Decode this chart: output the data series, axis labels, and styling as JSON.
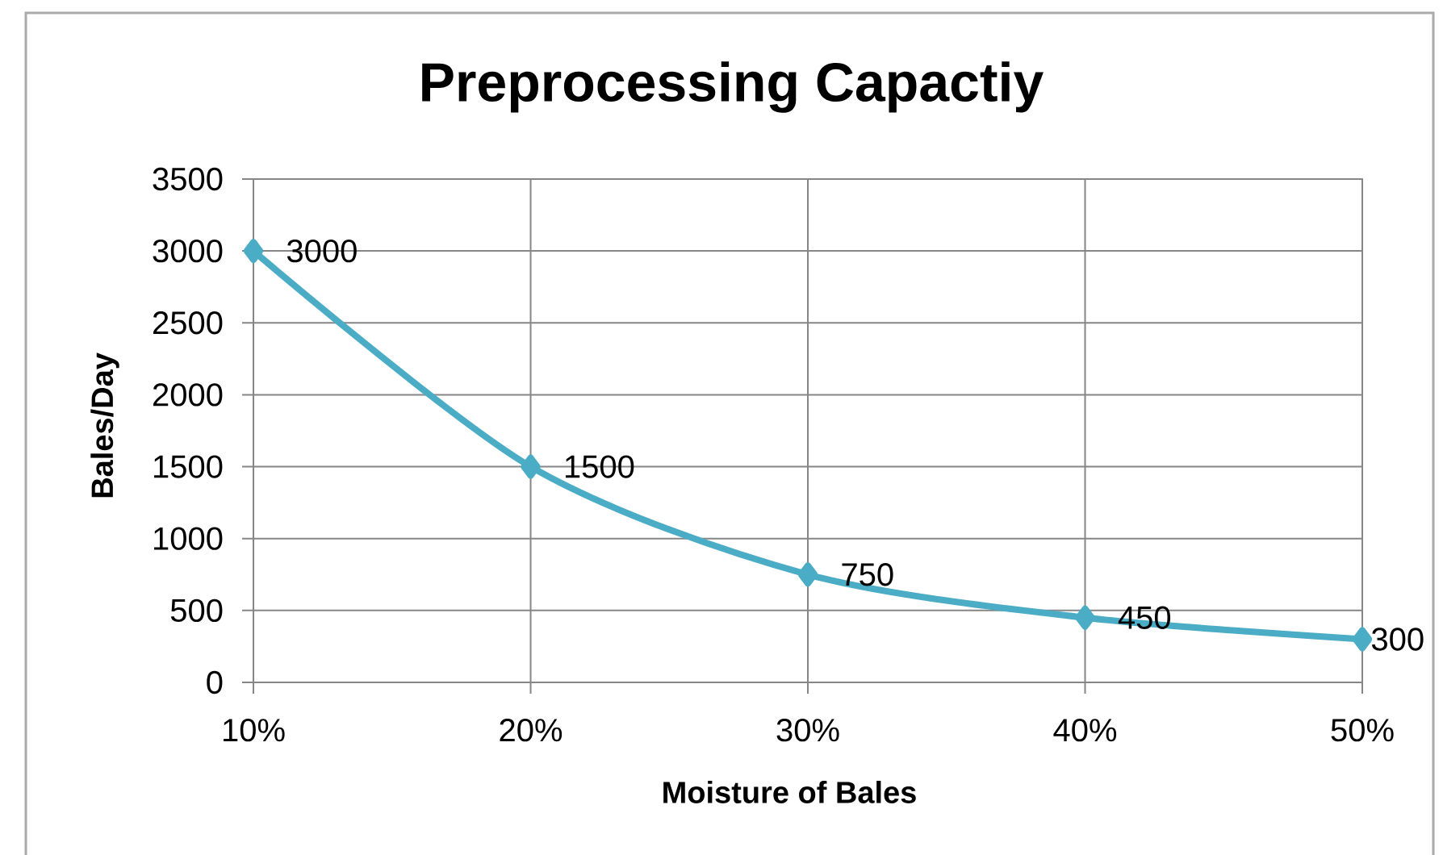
{
  "chart_data": {
    "type": "line",
    "title": "Preprocessing Capactiy",
    "xlabel": "Moisture of Bales",
    "ylabel": "Bales/Day",
    "categories": [
      "10%",
      "20%",
      "30%",
      "40%",
      "50%"
    ],
    "values": [
      3000,
      1500,
      750,
      450,
      300
    ],
    "color": "#4bacc6",
    "ylim": [
      0,
      3500
    ],
    "yticks": [
      0,
      500,
      1000,
      1500,
      2000,
      2500,
      3000,
      3500
    ],
    "grid": true,
    "marker": "diamond",
    "line_style": "solid",
    "data_labels": true
  }
}
